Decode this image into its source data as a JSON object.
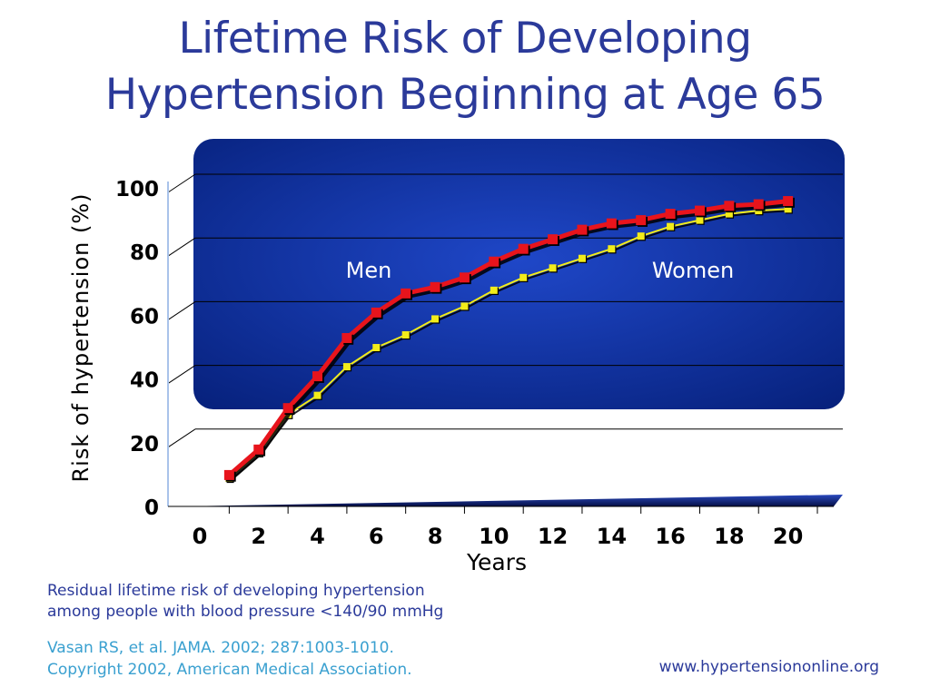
{
  "slide": {
    "title_line1": "Lifetime Risk of Developing",
    "title_line2": "Hypertension Beginning at Age 65",
    "note_line1": "Residual lifetime risk of developing hypertension",
    "note_line2": "among people with blood pressure <140/90 mmHg",
    "citation_line1": "Vasan RS, et al. JAMA. 2002; 287:1003-1010.",
    "citation_line2": "Copyright 2002, American Medical Association.",
    "website": "www.hypertensiononline.org"
  },
  "colors": {
    "panel": "#0a2a8a",
    "men_line": "#e8141c",
    "women_line": "#f2ec1a",
    "axis_text": "#000000",
    "text_blue": "#2b3a9a"
  },
  "chart_data": {
    "type": "line",
    "xlabel": "Years",
    "ylabel": "Risk of hypertension (%)",
    "xlim": [
      0,
      21
    ],
    "ylim": [
      0,
      100
    ],
    "x_ticks": [
      "0",
      "2",
      "4",
      "6",
      "8",
      "10",
      "12",
      "14",
      "16",
      "18",
      "20"
    ],
    "y_ticks": [
      "0",
      "20",
      "40",
      "60",
      "80",
      "100"
    ],
    "x": [
      1,
      2,
      3,
      4,
      5,
      6,
      7,
      8,
      9,
      10,
      11,
      12,
      13,
      14,
      15,
      16,
      17,
      18,
      19,
      20
    ],
    "series": [
      {
        "name": "Men",
        "values": [
          9,
          17,
          30,
          40,
          52,
          60,
          66,
          68,
          71,
          76,
          80,
          83,
          86,
          88,
          89,
          91,
          92,
          93.5,
          94,
          95
        ]
      },
      {
        "name": "Women",
        "values": [
          8,
          16,
          28,
          34,
          43,
          49,
          53,
          58,
          62,
          67,
          71,
          74,
          77,
          80,
          84,
          87,
          89,
          91,
          92,
          92.5
        ]
      }
    ],
    "grid": true,
    "legend": "inline labels"
  }
}
